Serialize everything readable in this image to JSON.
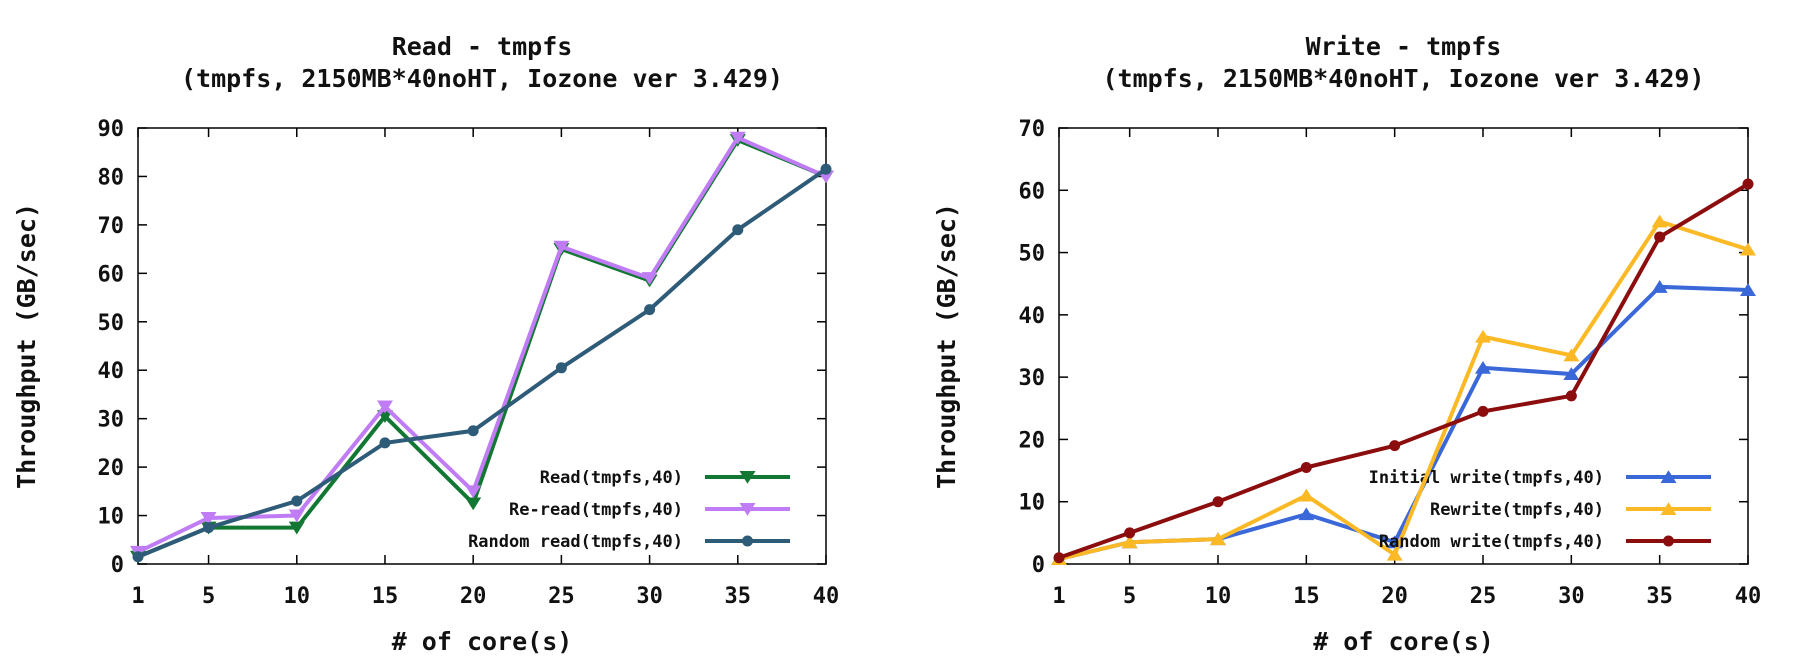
{
  "chart_data": [
    {
      "type": "line",
      "title": "Read - tmpfs",
      "subtitle": "(tmpfs, 2150MB*40noHT, Iozone ver 3.429)",
      "xlabel": "# of core(s)",
      "ylabel": "Throughput (GB/sec)",
      "x": [
        1,
        5,
        10,
        15,
        20,
        25,
        30,
        35,
        40
      ],
      "xticks": [
        1,
        5,
        10,
        15,
        20,
        25,
        30,
        35,
        40
      ],
      "xlim": [
        1,
        40
      ],
      "ylim": [
        0,
        90
      ],
      "yticks": [
        0,
        10,
        20,
        30,
        40,
        50,
        60,
        70,
        80,
        90
      ],
      "grid": false,
      "legend": "bottom-right",
      "series": [
        {
          "name": "Read(tmpfs,40)",
          "color": "#117733",
          "marker": "triangle-down",
          "values": [
            1.5,
            7.5,
            7.5,
            30.5,
            12.5,
            65.0,
            58.5,
            87.5,
            80.0
          ]
        },
        {
          "name": "Re-read(tmpfs,40)",
          "color": "#bf7cf5",
          "marker": "triangle-down",
          "values": [
            2.5,
            9.5,
            10.0,
            32.5,
            15.0,
            65.5,
            59.0,
            88.0,
            80.0
          ]
        },
        {
          "name": "Random read(tmpfs,40)",
          "color": "#2e5b78",
          "marker": "circle",
          "values": [
            1.5,
            7.5,
            13.0,
            25.0,
            27.5,
            40.5,
            52.5,
            69.0,
            81.5
          ]
        }
      ]
    },
    {
      "type": "line",
      "title": "Write - tmpfs",
      "subtitle": "(tmpfs, 2150MB*40noHT, Iozone ver 3.429)",
      "xlabel": "# of core(s)",
      "ylabel": "Throughput (GB/sec)",
      "x": [
        1,
        5,
        10,
        15,
        20,
        25,
        30,
        35,
        40
      ],
      "xticks": [
        1,
        5,
        10,
        15,
        20,
        25,
        30,
        35,
        40
      ],
      "xlim": [
        1,
        40
      ],
      "ylim": [
        0,
        70
      ],
      "yticks": [
        0,
        10,
        20,
        30,
        40,
        50,
        60,
        70
      ],
      "grid": false,
      "legend": "bottom-right",
      "series": [
        {
          "name": "Initial write(tmpfs,40)",
          "color": "#3a68d8",
          "marker": "triangle-up",
          "values": [
            0.8,
            3.5,
            4.0,
            8.0,
            3.5,
            31.5,
            30.5,
            44.5,
            44.0
          ]
        },
        {
          "name": "Rewrite(tmpfs,40)",
          "color": "#fbb925",
          "marker": "triangle-up",
          "values": [
            0.8,
            3.5,
            4.0,
            11.0,
            1.5,
            36.5,
            33.5,
            55.0,
            50.5
          ]
        },
        {
          "name": "Random write(tmpfs,40)",
          "color": "#8b0d0d",
          "marker": "circle",
          "values": [
            1.0,
            5.0,
            10.0,
            15.5,
            19.0,
            24.5,
            27.0,
            52.5,
            61.0
          ]
        }
      ]
    }
  ]
}
